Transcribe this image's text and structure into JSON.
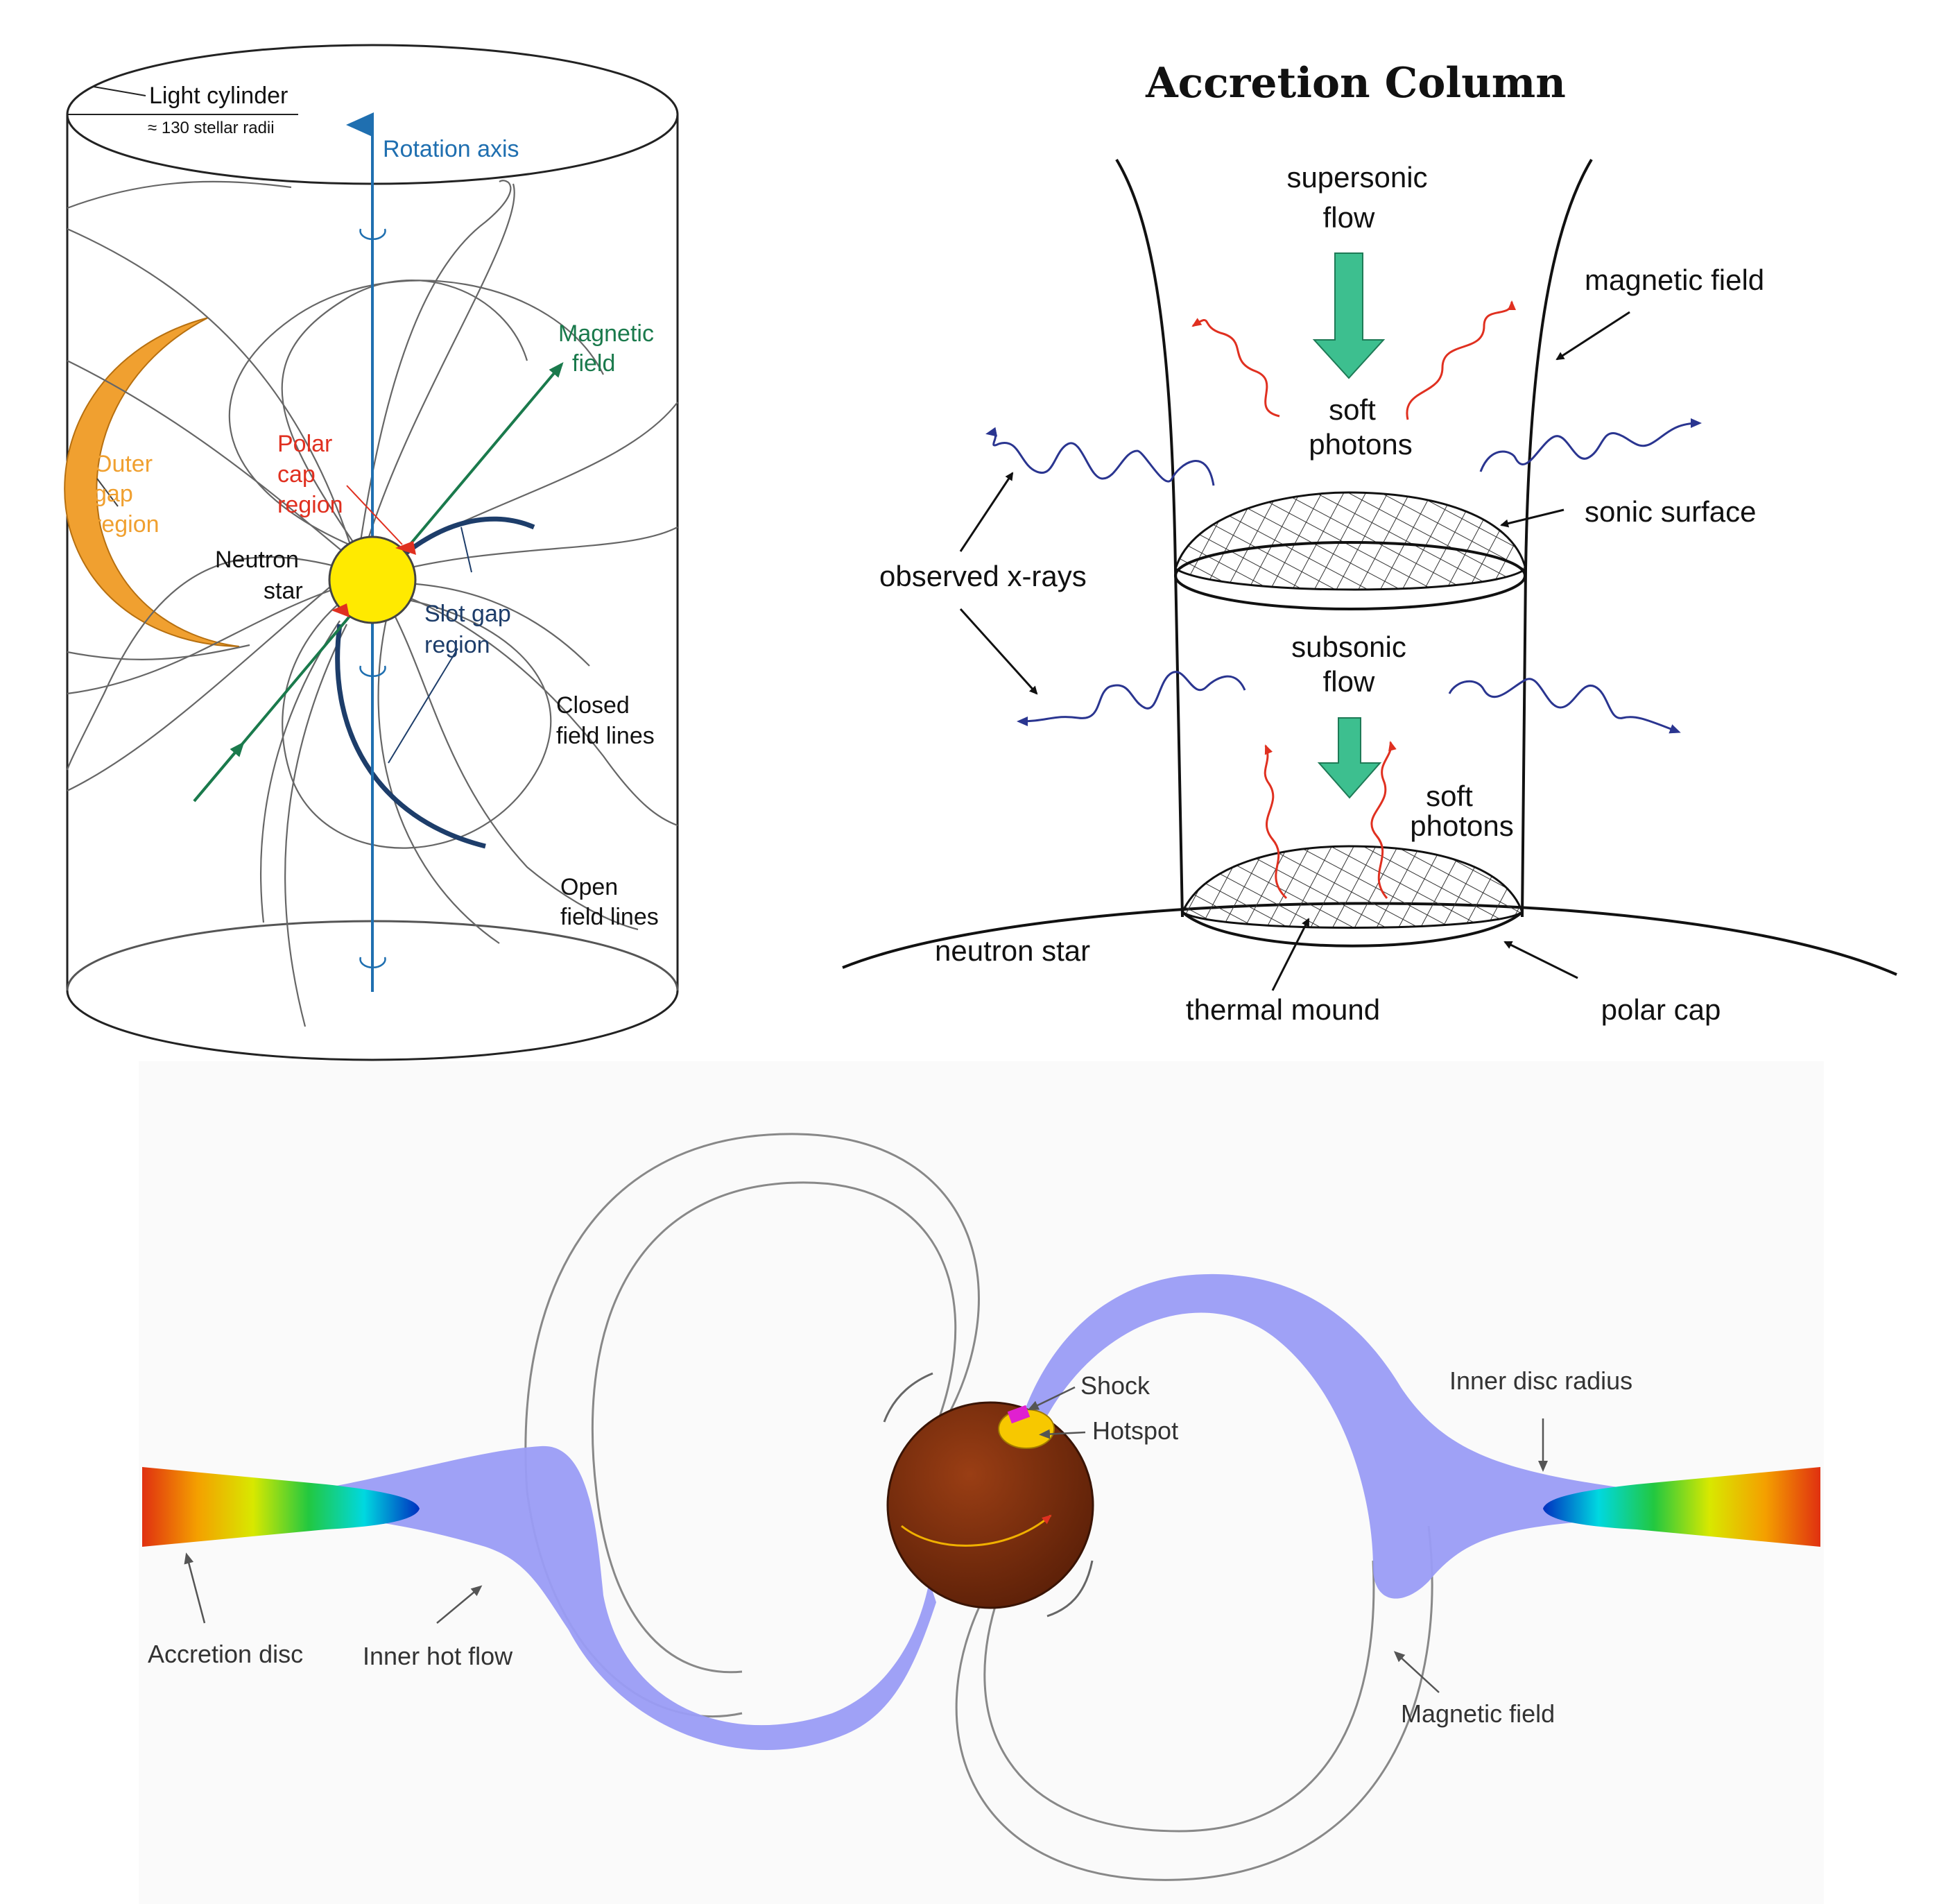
{
  "pulsar_panel": {
    "light_cylinder": "Light cylinder",
    "light_cylinder_note": "≈ 130 stellar radii",
    "rotation_axis": "Rotation axis",
    "magnetic_field_line1": "Magnetic",
    "magnetic_field_line2": "field",
    "outer_gap_line1": "Outer",
    "outer_gap_line2": "gap",
    "outer_gap_line3": "region",
    "polar_cap_line1": "Polar",
    "polar_cap_line2": "cap",
    "polar_cap_line3": "region",
    "neutron_star_line1": "Neutron",
    "neutron_star_line2": "star",
    "slot_gap_line1": "Slot gap",
    "slot_gap_line2": "region",
    "closed_lines_line1": "Closed",
    "closed_lines_line2": "field lines",
    "open_lines_line1": "Open",
    "open_lines_line2": "field lines",
    "colors": {
      "rotation_axis": "#1f6fb0",
      "magnetic_field": "#1a7a4c",
      "outer_gap": "#f0a030",
      "polar_cap": "#e03020",
      "slot_gap": "#1d3d6a",
      "star": "#ffea00"
    }
  },
  "accretion_column_panel": {
    "title": "Accretion Column",
    "supersonic_line1": "supersonic",
    "supersonic_line2": "flow",
    "magnetic_field": "magnetic field",
    "soft_photons_top_line1": "soft",
    "soft_photons_top_line2": "photons",
    "sonic_surface": "sonic surface",
    "observed_xrays": "observed x-rays",
    "subsonic_line1": "subsonic",
    "subsonic_line2": "flow",
    "soft_photons_bottom_line1": "soft",
    "soft_photons_bottom_line2": "photons",
    "neutron_star": "neutron star",
    "thermal_mound": "thermal mound",
    "polar_cap": "polar cap",
    "colors": {
      "flow_arrow": "#3dbf8f",
      "soft_photon": "#e03020",
      "xray": "#2a3590"
    }
  },
  "accretion_disc_panel": {
    "shock": "Shock",
    "hotspot": "Hotspot",
    "inner_disc_radius": "Inner disc radius",
    "accretion_disc": "Accretion disc",
    "inner_hot_flow": "Inner hot flow",
    "magnetic_field": "Magnetic field",
    "colors": {
      "hot_flow": "#9a9cf5",
      "star": "#7a2e0c",
      "hotspot": "#f7c800",
      "shock": "#e020d0"
    }
  }
}
